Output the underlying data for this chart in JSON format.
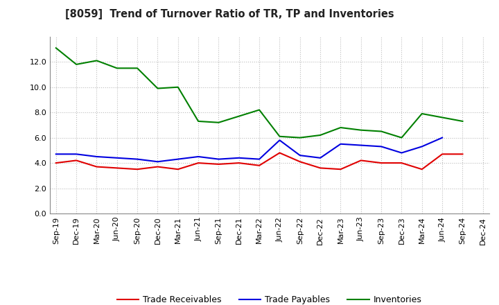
{
  "title": "[8059]  Trend of Turnover Ratio of TR, TP and Inventories",
  "labels": [
    "Sep-19",
    "Dec-19",
    "Mar-20",
    "Jun-20",
    "Sep-20",
    "Dec-20",
    "Mar-21",
    "Jun-21",
    "Sep-21",
    "Dec-21",
    "Mar-22",
    "Jun-22",
    "Sep-22",
    "Dec-22",
    "Mar-23",
    "Jun-23",
    "Sep-23",
    "Dec-23",
    "Mar-24",
    "Jun-24",
    "Sep-24",
    "Dec-24"
  ],
  "trade_receivables": [
    4.0,
    4.2,
    3.7,
    3.6,
    3.5,
    3.7,
    3.5,
    4.0,
    3.9,
    4.0,
    3.8,
    4.8,
    4.1,
    3.6,
    3.5,
    4.2,
    4.0,
    4.0,
    3.5,
    4.7,
    4.7,
    null
  ],
  "trade_payables": [
    4.7,
    4.7,
    4.5,
    4.4,
    4.3,
    4.1,
    4.3,
    4.5,
    4.3,
    4.4,
    4.3,
    5.8,
    4.6,
    4.4,
    5.5,
    5.4,
    5.3,
    4.8,
    5.3,
    6.0,
    null,
    null
  ],
  "inventories": [
    13.1,
    11.8,
    12.1,
    11.5,
    11.5,
    9.9,
    10.0,
    7.3,
    7.2,
    7.7,
    8.2,
    6.1,
    6.0,
    6.2,
    6.8,
    6.6,
    6.5,
    6.0,
    7.9,
    7.6,
    7.3,
    null
  ],
  "color_tr": "#e00000",
  "color_tp": "#0000e0",
  "color_inv": "#008000",
  "ylim": [
    0.0,
    14.0
  ],
  "yticks": [
    0.0,
    2.0,
    4.0,
    6.0,
    8.0,
    10.0,
    12.0
  ],
  "background_color": "#ffffff",
  "grid_color": "#bbbbbb"
}
